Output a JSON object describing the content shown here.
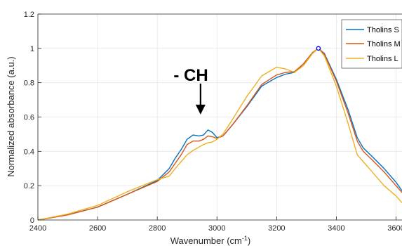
{
  "chart_data": {
    "type": "line",
    "title": "",
    "xlabel": "Wavenumber (cm",
    "xlabel_sup": "-1",
    "xlabel_tail": ")",
    "ylabel": "Normalized absorbance (a.u.)",
    "xlim": [
      2400,
      3620
    ],
    "ylim": [
      0,
      1.2
    ],
    "xticks": [
      2400,
      2600,
      2800,
      3000,
      3200,
      3400,
      3600
    ],
    "yticks": [
      0,
      0.2,
      0.4,
      0.6,
      0.8,
      1,
      1.2
    ],
    "xtick_labels": [
      "2400",
      "2600",
      "2800",
      "3000",
      "3200",
      "3400",
      "3600"
    ],
    "ytick_labels": [
      "0",
      "0.2",
      "0.4",
      "0.6",
      "0.8",
      "1",
      "1.2"
    ],
    "grid": true,
    "legend_position": "top-right",
    "annotation": {
      "text": "- CH",
      "arrow_x": 2945,
      "arrow_y_from": 0.795,
      "arrow_y_to": 0.615
    },
    "marker": {
      "x": 3340,
      "y": 1.0
    },
    "series": [
      {
        "name": "Tholins S",
        "color": "#0072BD",
        "x": [
          2400,
          2500,
          2600,
          2700,
          2800,
          2840,
          2860,
          2880,
          2900,
          2920,
          2940,
          2955,
          2970,
          2985,
          3000,
          3020,
          3050,
          3100,
          3150,
          3200,
          3230,
          3260,
          3290,
          3320,
          3340,
          3360,
          3400,
          3440,
          3470,
          3490,
          3520,
          3560,
          3600,
          3620
        ],
        "y": [
          0.0,
          0.03,
          0.075,
          0.15,
          0.23,
          0.3,
          0.36,
          0.41,
          0.47,
          0.495,
          0.49,
          0.495,
          0.525,
          0.51,
          0.48,
          0.49,
          0.55,
          0.66,
          0.78,
          0.83,
          0.85,
          0.86,
          0.91,
          0.975,
          1.0,
          0.97,
          0.82,
          0.64,
          0.48,
          0.42,
          0.37,
          0.3,
          0.22,
          0.17
        ]
      },
      {
        "name": "Tholins M",
        "color": "#D95319",
        "x": [
          2400,
          2500,
          2600,
          2700,
          2800,
          2840,
          2860,
          2880,
          2900,
          2920,
          2940,
          2955,
          2970,
          2985,
          3000,
          3020,
          3050,
          3100,
          3150,
          3200,
          3230,
          3260,
          3290,
          3320,
          3340,
          3360,
          3400,
          3440,
          3470,
          3490,
          3520,
          3560,
          3600,
          3620
        ],
        "y": [
          0.0,
          0.03,
          0.075,
          0.15,
          0.225,
          0.28,
          0.33,
          0.38,
          0.44,
          0.46,
          0.46,
          0.47,
          0.49,
          0.485,
          0.475,
          0.49,
          0.55,
          0.665,
          0.79,
          0.845,
          0.86,
          0.865,
          0.91,
          0.975,
          1.0,
          0.965,
          0.81,
          0.62,
          0.46,
          0.4,
          0.35,
          0.28,
          0.2,
          0.16
        ]
      },
      {
        "name": "Tholins L",
        "color": "#EDB120",
        "x": [
          2400,
          2500,
          2600,
          2700,
          2800,
          2840,
          2860,
          2880,
          2900,
          2920,
          2940,
          2955,
          2970,
          2985,
          3000,
          3020,
          3050,
          3100,
          3150,
          3200,
          3230,
          3260,
          3290,
          3320,
          3340,
          3360,
          3400,
          3440,
          3470,
          3490,
          3520,
          3560,
          3600,
          3620
        ],
        "y": [
          0.0,
          0.035,
          0.085,
          0.165,
          0.235,
          0.255,
          0.3,
          0.34,
          0.38,
          0.405,
          0.425,
          0.44,
          0.45,
          0.455,
          0.47,
          0.5,
          0.58,
          0.72,
          0.84,
          0.89,
          0.88,
          0.86,
          0.9,
          0.97,
          1.0,
          0.955,
          0.78,
          0.56,
          0.38,
          0.34,
          0.28,
          0.2,
          0.14,
          0.1
        ]
      }
    ]
  }
}
